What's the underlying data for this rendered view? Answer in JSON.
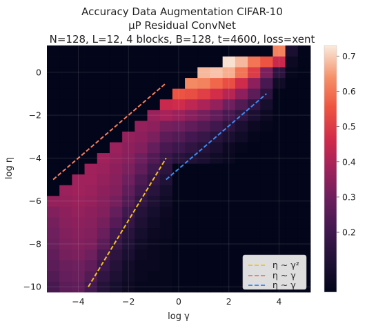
{
  "chart_data": {
    "type": "heatmap",
    "title_lines": [
      "Accuracy Data Augmentation CIFAR-10",
      "μP Residual ConvNet",
      "N=128, L=12, 4 blocks, B=128, t=4600, loss=xent"
    ],
    "xlabel": "log γ",
    "ylabel": "log η",
    "xlim": [
      -5.25,
      5.25
    ],
    "ylim": [
      -10.25,
      1.25
    ],
    "xticks": [
      -4,
      -2,
      0,
      2,
      4
    ],
    "yticks": [
      -10,
      -8,
      -6,
      -4,
      -2,
      0
    ],
    "x_centers": [
      -5,
      -4.5,
      -4,
      -3.5,
      -3,
      -2.5,
      -2,
      -1.5,
      -1,
      -0.5,
      0,
      0.5,
      1,
      1.5,
      2,
      2.5,
      3,
      3.5,
      4,
      4.5,
      5
    ],
    "y_centers": [
      -10,
      -9.5,
      -9,
      -8.5,
      -8,
      -7.5,
      -7,
      -6.5,
      -6,
      -5.5,
      -5,
      -4.5,
      -4,
      -3.5,
      -3,
      -2.5,
      -2,
      -1.5,
      -1,
      -0.5,
      0,
      0.5,
      1
    ],
    "values": [
      [
        0.22,
        0.26,
        0.27,
        0.21,
        0.13,
        0.09,
        0.06,
        0.04,
        0.04,
        0.04,
        0.03,
        0.03,
        0.03,
        0.03,
        0.03,
        0.03,
        0.03,
        0.03,
        0.03,
        0.03,
        0.03
      ],
      [
        0.24,
        0.28,
        0.29,
        0.24,
        0.16,
        0.11,
        0.07,
        0.05,
        0.04,
        0.04,
        0.03,
        0.03,
        0.03,
        0.03,
        0.03,
        0.03,
        0.03,
        0.03,
        0.03,
        0.03,
        0.03
      ],
      [
        0.26,
        0.29,
        0.3,
        0.27,
        0.19,
        0.13,
        0.08,
        0.05,
        0.05,
        0.04,
        0.03,
        0.03,
        0.03,
        0.03,
        0.03,
        0.03,
        0.03,
        0.03,
        0.03,
        0.03,
        0.03
      ],
      [
        0.27,
        0.31,
        0.32,
        0.3,
        0.22,
        0.15,
        0.1,
        0.06,
        0.05,
        0.04,
        0.03,
        0.03,
        0.03,
        0.03,
        0.03,
        0.03,
        0.03,
        0.03,
        0.03,
        0.03,
        0.03
      ],
      [
        0.29,
        0.32,
        0.33,
        0.32,
        0.26,
        0.18,
        0.12,
        0.07,
        0.05,
        0.04,
        0.03,
        0.03,
        0.03,
        0.03,
        0.03,
        0.03,
        0.03,
        0.03,
        0.03,
        0.03,
        0.03
      ],
      [
        0.3,
        0.33,
        0.34,
        0.33,
        0.29,
        0.21,
        0.14,
        0.09,
        0.06,
        0.05,
        0.03,
        0.03,
        0.03,
        0.03,
        0.03,
        0.03,
        0.03,
        0.03,
        0.03,
        0.03,
        0.03
      ],
      [
        0.31,
        0.34,
        0.35,
        0.34,
        0.31,
        0.25,
        0.17,
        0.11,
        0.07,
        0.05,
        0.03,
        0.03,
        0.03,
        0.03,
        0.03,
        0.03,
        0.03,
        0.03,
        0.03,
        0.03,
        0.03
      ],
      [
        0.33,
        0.35,
        0.36,
        0.35,
        0.33,
        0.28,
        0.2,
        0.13,
        0.09,
        0.06,
        0.03,
        0.03,
        0.03,
        0.03,
        0.03,
        0.03,
        0.03,
        0.03,
        0.03,
        0.03,
        0.03
      ],
      [
        0.36,
        0.36,
        0.37,
        0.36,
        0.34,
        0.31,
        0.24,
        0.16,
        0.11,
        0.07,
        0.03,
        0.03,
        0.03,
        0.03,
        0.03,
        0.03,
        0.03,
        0.03,
        0.03,
        0.03,
        0.03
      ],
      [
        0.03,
        0.37,
        0.38,
        0.37,
        0.35,
        0.33,
        0.27,
        0.2,
        0.14,
        0.09,
        0.03,
        0.03,
        0.03,
        0.03,
        0.03,
        0.03,
        0.03,
        0.03,
        0.03,
        0.03,
        0.03
      ],
      [
        0.03,
        0.03,
        0.38,
        0.38,
        0.36,
        0.34,
        0.3,
        0.23,
        0.17,
        0.12,
        0.03,
        0.03,
        0.03,
        0.03,
        0.03,
        0.03,
        0.03,
        0.03,
        0.03,
        0.03,
        0.03
      ],
      [
        0.03,
        0.03,
        0.03,
        0.38,
        0.37,
        0.35,
        0.32,
        0.27,
        0.2,
        0.15,
        0.03,
        0.03,
        0.03,
        0.03,
        0.03,
        0.03,
        0.03,
        0.03,
        0.03,
        0.03,
        0.03
      ],
      [
        0.03,
        0.03,
        0.03,
        0.03,
        0.38,
        0.36,
        0.34,
        0.3,
        0.24,
        0.18,
        0.14,
        0.12,
        0.1,
        0.07,
        0.05,
        0.03,
        0.03,
        0.03,
        0.03,
        0.03,
        0.03
      ],
      [
        0.03,
        0.03,
        0.03,
        0.03,
        0.03,
        0.37,
        0.35,
        0.33,
        0.28,
        0.22,
        0.19,
        0.16,
        0.13,
        0.1,
        0.06,
        0.04,
        0.03,
        0.03,
        0.03,
        0.03,
        0.03
      ],
      [
        0.03,
        0.03,
        0.03,
        0.03,
        0.03,
        0.03,
        0.36,
        0.35,
        0.32,
        0.26,
        0.24,
        0.21,
        0.18,
        0.14,
        0.1,
        0.07,
        0.04,
        0.03,
        0.03,
        0.03,
        0.03
      ],
      [
        0.03,
        0.03,
        0.03,
        0.03,
        0.03,
        0.03,
        0.03,
        0.36,
        0.35,
        0.31,
        0.3,
        0.27,
        0.24,
        0.2,
        0.15,
        0.1,
        0.06,
        0.04,
        0.03,
        0.03,
        0.03
      ],
      [
        0.03,
        0.03,
        0.03,
        0.03,
        0.03,
        0.03,
        0.03,
        0.03,
        0.37,
        0.39,
        0.37,
        0.34,
        0.31,
        0.27,
        0.22,
        0.16,
        0.1,
        0.06,
        0.03,
        0.03,
        0.03
      ],
      [
        0.03,
        0.03,
        0.03,
        0.03,
        0.03,
        0.03,
        0.03,
        0.03,
        0.03,
        0.45,
        0.46,
        0.43,
        0.4,
        0.36,
        0.3,
        0.24,
        0.16,
        0.09,
        0.03,
        0.03,
        0.03
      ],
      [
        0.03,
        0.03,
        0.03,
        0.03,
        0.03,
        0.03,
        0.03,
        0.03,
        0.03,
        0.03,
        0.55,
        0.54,
        0.51,
        0.47,
        0.42,
        0.35,
        0.26,
        0.15,
        0.03,
        0.03,
        0.03
      ],
      [
        0.03,
        0.03,
        0.03,
        0.03,
        0.03,
        0.03,
        0.03,
        0.03,
        0.03,
        0.03,
        0.03,
        0.63,
        0.62,
        0.58,
        0.54,
        0.46,
        0.35,
        0.22,
        0.07,
        0.03,
        0.03
      ],
      [
        0.03,
        0.03,
        0.03,
        0.03,
        0.03,
        0.03,
        0.03,
        0.03,
        0.03,
        0.03,
        0.03,
        0.03,
        0.68,
        0.69,
        0.67,
        0.6,
        0.5,
        0.32,
        0.15,
        0.04,
        0.03
      ],
      [
        0.03,
        0.03,
        0.03,
        0.03,
        0.03,
        0.03,
        0.03,
        0.03,
        0.03,
        0.03,
        0.03,
        0.03,
        0.03,
        0.03,
        0.72,
        0.68,
        0.6,
        0.55,
        0.45,
        0.06,
        0.03
      ],
      [
        0.03,
        0.03,
        0.03,
        0.03,
        0.03,
        0.03,
        0.03,
        0.03,
        0.03,
        0.03,
        0.03,
        0.03,
        0.03,
        0.03,
        0.03,
        0.03,
        0.03,
        0.03,
        0.62,
        0.1,
        0.03
      ]
    ],
    "colorbar": {
      "range": [
        0.03,
        0.73
      ],
      "ticks": [
        0.2,
        0.3,
        0.4,
        0.5,
        0.6,
        0.7
      ],
      "colormap": "rocket"
    },
    "lines": [
      {
        "name": "η ~ γ²",
        "color": "#f5c518",
        "x": [
          -3.6,
          -0.5
        ],
        "y": [
          -10.0,
          -4.0
        ]
      },
      {
        "name": "η ~ γ",
        "color": "#f97f5e",
        "x": [
          -5.0,
          -0.5
        ],
        "y": [
          -5.0,
          -0.5
        ]
      },
      {
        "name": "η ~ γ",
        "color": "#3a8ef5",
        "x": [
          -0.5,
          3.5
        ],
        "y": [
          -5.0,
          -1.0
        ]
      }
    ],
    "legend": {
      "placement": "lower-right",
      "labels": [
        "η ~ γ²",
        "η ~ γ",
        "η ~ γ"
      ]
    }
  }
}
